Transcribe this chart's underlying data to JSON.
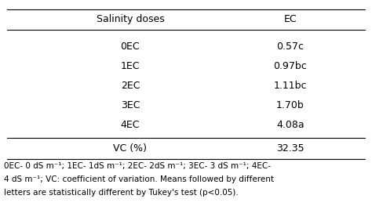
{
  "col_headers": [
    "Salinity doses",
    "EC"
  ],
  "rows": [
    [
      "0EC",
      "0.57c"
    ],
    [
      "1EC",
      "0.97bc"
    ],
    [
      "2EC",
      "1.11bc"
    ],
    [
      "3EC",
      "1.70b"
    ],
    [
      "4EC",
      "4.08a"
    ]
  ],
  "vc_row": [
    "VC (%)",
    "32.35"
  ],
  "footnote_line1": "0EC- 0 dS m⁻¹; 1EC- 1dS m⁻¹; 2EC- 2dS m⁻¹; 3EC- 3 dS m⁻¹; 4EC-",
  "footnote_line2": "4 dS m⁻¹; VC: coefficient of variation. Means followed by different",
  "footnote_line3": "letters are statistically different by Tukey's test (p<0.05).",
  "bg_color": "#ffffff",
  "text_color": "#000000",
  "header_fontsize": 9,
  "body_fontsize": 9,
  "footnote_fontsize": 7.5
}
